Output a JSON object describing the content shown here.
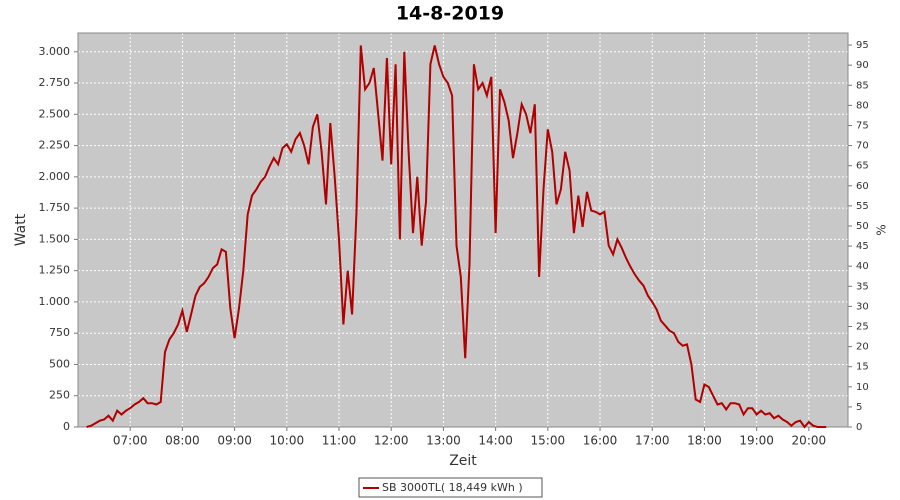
{
  "chart_data": {
    "type": "line",
    "title": "14-8-2019",
    "x_label": "Zeit",
    "y_label": "Watt",
    "y2_label": "%",
    "x": [
      "06:10",
      "06:15",
      "06:20",
      "06:25",
      "06:30",
      "06:35",
      "06:40",
      "06:45",
      "06:50",
      "06:55",
      "07:00",
      "07:05",
      "07:10",
      "07:15",
      "07:20",
      "07:25",
      "07:30",
      "07:35",
      "07:40",
      "07:45",
      "07:50",
      "07:55",
      "08:00",
      "08:05",
      "08:10",
      "08:15",
      "08:20",
      "08:25",
      "08:30",
      "08:35",
      "08:40",
      "08:45",
      "08:50",
      "08:55",
      "09:00",
      "09:05",
      "09:10",
      "09:15",
      "09:20",
      "09:25",
      "09:30",
      "09:35",
      "09:40",
      "09:45",
      "09:50",
      "09:55",
      "10:00",
      "10:05",
      "10:10",
      "10:15",
      "10:20",
      "10:25",
      "10:30",
      "10:35",
      "10:40",
      "10:45",
      "10:50",
      "10:55",
      "11:00",
      "11:05",
      "11:10",
      "11:15",
      "11:20",
      "11:25",
      "11:30",
      "11:35",
      "11:40",
      "11:45",
      "11:50",
      "11:55",
      "12:00",
      "12:05",
      "12:10",
      "12:15",
      "12:20",
      "12:25",
      "12:30",
      "12:35",
      "12:40",
      "12:45",
      "12:50",
      "12:55",
      "13:00",
      "13:05",
      "13:10",
      "13:15",
      "13:20",
      "13:25",
      "13:30",
      "13:35",
      "13:40",
      "13:45",
      "13:50",
      "13:55",
      "14:00",
      "14:05",
      "14:10",
      "14:15",
      "14:20",
      "14:25",
      "14:30",
      "14:35",
      "14:40",
      "14:45",
      "14:50",
      "14:55",
      "15:00",
      "15:05",
      "15:10",
      "15:15",
      "15:20",
      "15:25",
      "15:30",
      "15:35",
      "15:40",
      "15:45",
      "15:50",
      "15:55",
      "16:00",
      "16:05",
      "16:10",
      "16:15",
      "16:20",
      "16:25",
      "16:30",
      "16:35",
      "16:40",
      "16:45",
      "16:50",
      "16:55",
      "17:00",
      "17:05",
      "17:10",
      "17:15",
      "17:20",
      "17:25",
      "17:30",
      "17:35",
      "17:40",
      "17:45",
      "17:50",
      "17:55",
      "18:00",
      "18:05",
      "18:10",
      "18:15",
      "18:20",
      "18:25",
      "18:30",
      "18:35",
      "18:40",
      "18:45",
      "18:50",
      "18:55",
      "19:00",
      "19:05",
      "19:10",
      "19:15",
      "19:20",
      "19:25",
      "19:30",
      "19:35",
      "19:40",
      "19:45",
      "19:50",
      "19:55",
      "20:00",
      "20:05",
      "20:10",
      "20:15",
      "20:20"
    ],
    "series": [
      {
        "name": "SB 3000TL( 18,449 kWh )",
        "color": "#b00000",
        "values": [
          0,
          10,
          30,
          50,
          60,
          90,
          50,
          130,
          100,
          130,
          150,
          180,
          200,
          230,
          190,
          190,
          180,
          200,
          600,
          700,
          750,
          820,
          930,
          760,
          900,
          1050,
          1120,
          1150,
          1200,
          1270,
          1300,
          1420,
          1400,
          950,
          710,
          950,
          1250,
          1700,
          1850,
          1900,
          1960,
          2000,
          2080,
          2150,
          2100,
          2230,
          2260,
          2200,
          2300,
          2350,
          2250,
          2100,
          2400,
          2500,
          2200,
          1780,
          2430,
          2000,
          1500,
          820,
          1250,
          900,
          1700,
          3050,
          2700,
          2750,
          2870,
          2500,
          2130,
          2950,
          2100,
          2900,
          1500,
          3000,
          2200,
          1550,
          2000,
          1450,
          1800,
          2900,
          3050,
          2900,
          2800,
          2750,
          2650,
          1450,
          1200,
          550,
          1300,
          2900,
          2700,
          2750,
          2650,
          2800,
          1550,
          2700,
          2600,
          2450,
          2150,
          2350,
          2580,
          2500,
          2350,
          2580,
          1200,
          1900,
          2380,
          2200,
          1780,
          1900,
          2200,
          2050,
          1550,
          1850,
          1600,
          1880,
          1730,
          1720,
          1700,
          1720,
          1450,
          1380,
          1500,
          1430,
          1350,
          1280,
          1220,
          1170,
          1130,
          1050,
          1000,
          940,
          850,
          810,
          770,
          750,
          680,
          650,
          660,
          500,
          220,
          200,
          340,
          320,
          250,
          180,
          190,
          140,
          190,
          190,
          180,
          100,
          150,
          150,
          100,
          130,
          100,
          110,
          70,
          90,
          60,
          40,
          10,
          40,
          50,
          0,
          40,
          10,
          0,
          0,
          0
        ]
      }
    ],
    "xlim": [
      "06:00",
      "20:45"
    ],
    "xticks": [
      "07:00",
      "08:00",
      "09:00",
      "10:00",
      "11:00",
      "12:00",
      "13:00",
      "14:00",
      "15:00",
      "16:00",
      "17:00",
      "18:00",
      "19:00",
      "20:00"
    ],
    "ylim": [
      0,
      3150
    ],
    "yticks": [
      0,
      250,
      500,
      750,
      {
        "value": 1000,
        "label": "1.000"
      },
      {
        "value": 1250,
        "label": "1.250"
      },
      {
        "value": 1500,
        "label": "1.500"
      },
      {
        "value": 1750,
        "label": "1.750"
      },
      {
        "value": 2000,
        "label": "2.000"
      },
      {
        "value": 2250,
        "label": "2.250"
      },
      {
        "value": 2500,
        "label": "2.500"
      },
      {
        "value": 2750,
        "label": "2.750"
      },
      {
        "value": 3000,
        "label": "3.000"
      }
    ],
    "y2lim": [
      0,
      98
    ],
    "y2ticks": [
      0,
      5,
      10,
      15,
      20,
      25,
      30,
      35,
      40,
      45,
      50,
      55,
      60,
      65,
      70,
      75,
      80,
      85,
      90,
      95
    ],
    "grid": true
  }
}
